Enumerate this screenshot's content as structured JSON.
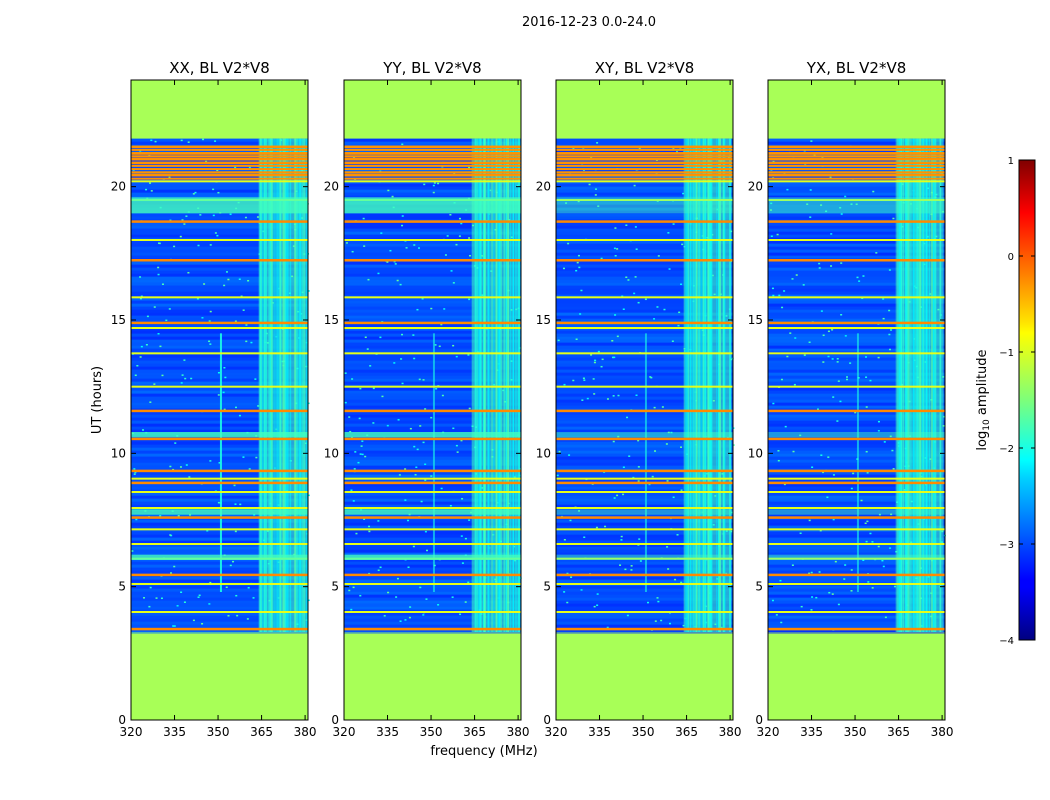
{
  "chart_data": {
    "type": "heatmap",
    "suptitle": "2016-12-23 0.0-24.0",
    "xlabel": "frequency (MHz)",
    "ylabel": "UT (hours)",
    "xlim": [
      320,
      381
    ],
    "ylim": [
      0,
      24
    ],
    "xticks": [
      320,
      335,
      350,
      365,
      380
    ],
    "yticks": [
      0,
      5,
      10,
      15,
      20
    ],
    "panels": [
      {
        "title": "XX, BL V2*V8",
        "pol": "XX"
      },
      {
        "title": "YY, BL V2*V8",
        "pol": "YY"
      },
      {
        "title": "XY, BL V2*V8",
        "pol": "XY"
      },
      {
        "title": "YX, BL V2*V8",
        "pol": "YX"
      }
    ],
    "colorbar": {
      "label": "log10 amplitude",
      "label_main": "log",
      "label_sub": "10",
      "label_rest": " amplitude",
      "range": [
        -4,
        1
      ],
      "ticks": [
        -4,
        -3,
        -2,
        -1,
        0,
        1
      ],
      "tick_labels": [
        "−4",
        "−3",
        "−2",
        "−1",
        "0",
        "1"
      ],
      "colormap": "jet"
    },
    "data_extent_hours": [
      3.3,
      21.8
    ],
    "flagged_value_log10": -1.3,
    "background_log10": -3.0,
    "rfi_band_mhz": [
      364,
      380.5
    ],
    "rfi_band_log10": -1.8,
    "rfi_channels_mhz": [
      368.5,
      372.5,
      376.5
    ],
    "spike_channel_mhz": 351,
    "flag_lines_hours": [
      3.42,
      4.05,
      5.1,
      5.45,
      6.05,
      6.6,
      7.15,
      7.6,
      7.95,
      8.55,
      8.9,
      9.05,
      9.35,
      10.55,
      11.6,
      12.5,
      13.75,
      14.7,
      14.9,
      15.85,
      17.25,
      18.0,
      18.7,
      19.5,
      20.2,
      20.45,
      20.9,
      21.05,
      21.25,
      21.5
    ],
    "orange_lines_hours": [
      3.42,
      5.45,
      7.6,
      8.9,
      9.35,
      10.55,
      11.6,
      14.9,
      17.25,
      18.7,
      20.45,
      20.9,
      21.05,
      21.25,
      21.5
    ]
  }
}
